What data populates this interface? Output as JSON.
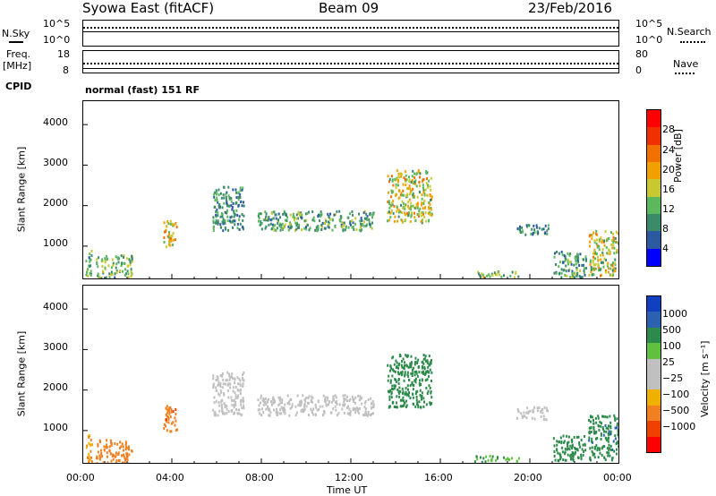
{
  "header": {
    "left": "Syowa East (fitACF)",
    "center": "Beam 09",
    "right": "23/Feb/2016"
  },
  "top_panels": {
    "nsky_label": "N.Sky",
    "nsearch_label": "N.Search",
    "nsky_ticks": [
      "10^5",
      "10^0"
    ],
    "nsearch_ticks": [
      "10^5",
      "10^0"
    ],
    "freq_label_1": "Freq.",
    "freq_label_2": "[MHz]",
    "freq_ticks": [
      "18",
      "8"
    ],
    "nave_label": "Nave",
    "nave_ticks": [
      "80",
      "0"
    ],
    "cpid_label": "CPID",
    "cpid_value": "normal (fast) 151 RF"
  },
  "xaxis": {
    "label": "Time UT",
    "ticks": [
      "00:00",
      "04:00",
      "08:00",
      "12:00",
      "16:00",
      "20:00",
      "00:00"
    ]
  },
  "yaxis": {
    "label": "Slant Range [km]",
    "ticks": [
      "4000",
      "3000",
      "2000",
      "1000"
    ]
  },
  "power_scale": {
    "label": "Power [dB]",
    "ticks": [
      "28",
      "24",
      "20",
      "16",
      "12",
      "8",
      "4"
    ],
    "colors": [
      "#0000ff",
      "#2c5aa0",
      "#3b8a6a",
      "#5cb85c",
      "#c8c832",
      "#f0a000",
      "#f07000",
      "#f03000",
      "#ff0000"
    ]
  },
  "velocity_scale": {
    "label": "Velocity [m s⁻¹]",
    "ticks": [
      "1000",
      "500",
      "100",
      "25",
      "−25",
      "−100",
      "−500",
      "−1000"
    ],
    "colors": [
      "#ff0000",
      "#f04000",
      "#f08020",
      "#f0b000",
      "#c0c0c0",
      "#c0c0c0",
      "#60c040",
      "#2c8a4a",
      "#2c60b0",
      "#1040c0"
    ]
  },
  "chart_data": [
    {
      "type": "heatmap",
      "title": "Power",
      "xlabel": "Time UT",
      "ylabel": "Slant Range [km]",
      "xlim": [
        0,
        24
      ],
      "ylim": [
        180,
        4600
      ],
      "regions": [
        {
          "t": [
            0.1,
            0.4
          ],
          "r": [
            250,
            1000
          ],
          "v": 12
        },
        {
          "t": [
            0.6,
            2.2
          ],
          "r": [
            200,
            800
          ],
          "v": 14
        },
        {
          "t": [
            3.6,
            4.2
          ],
          "r": [
            1000,
            1650
          ],
          "v": 20
        },
        {
          "t": [
            5.8,
            7.2
          ],
          "r": [
            1400,
            2500
          ],
          "v": 10
        },
        {
          "t": [
            7.8,
            13.0
          ],
          "r": [
            1400,
            1900
          ],
          "v": 12
        },
        {
          "t": [
            13.6,
            15.6
          ],
          "r": [
            1600,
            2900
          ],
          "v": 18
        },
        {
          "t": [
            17.5,
            19.5
          ],
          "r": [
            250,
            400
          ],
          "v": 14
        },
        {
          "t": [
            19.4,
            20.8
          ],
          "r": [
            1300,
            1600
          ],
          "v": 10
        },
        {
          "t": [
            21.0,
            22.5
          ],
          "r": [
            250,
            900
          ],
          "v": 12
        },
        {
          "t": [
            22.6,
            24.0
          ],
          "r": [
            300,
            1400
          ],
          "v": 18
        }
      ]
    },
    {
      "type": "heatmap",
      "title": "Velocity",
      "xlabel": "Time UT",
      "ylabel": "Slant Range [km]",
      "xlim": [
        0,
        24
      ],
      "ylim": [
        180,
        4600
      ],
      "regions": [
        {
          "t": [
            0.1,
            0.4
          ],
          "r": [
            250,
            1000
          ],
          "v": -100
        },
        {
          "t": [
            0.6,
            2.2
          ],
          "r": [
            200,
            800
          ],
          "v": -300
        },
        {
          "t": [
            3.6,
            4.2
          ],
          "r": [
            1000,
            1650
          ],
          "v": -400
        },
        {
          "t": [
            5.8,
            7.2
          ],
          "r": [
            1400,
            2500
          ],
          "v": 0
        },
        {
          "t": [
            7.8,
            13.0
          ],
          "r": [
            1400,
            1900
          ],
          "v": 0
        },
        {
          "t": [
            13.6,
            15.6
          ],
          "r": [
            1600,
            2900
          ],
          "v": 150
        },
        {
          "t": [
            17.5,
            19.5
          ],
          "r": [
            250,
            400
          ],
          "v": 100
        },
        {
          "t": [
            19.4,
            20.8
          ],
          "r": [
            1300,
            1600
          ],
          "v": 10
        },
        {
          "t": [
            21.0,
            22.5
          ],
          "r": [
            250,
            900
          ],
          "v": 200
        },
        {
          "t": [
            22.6,
            24.0
          ],
          "r": [
            300,
            1400
          ],
          "v": 400
        }
      ]
    }
  ]
}
